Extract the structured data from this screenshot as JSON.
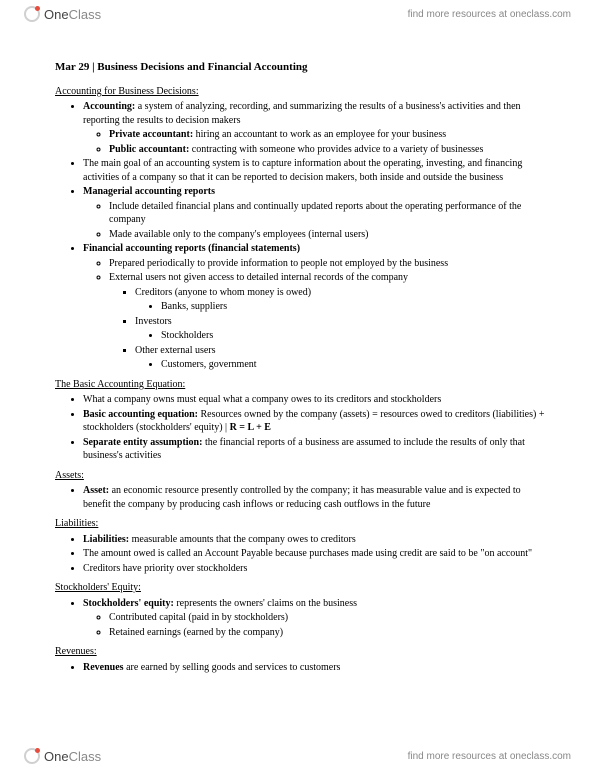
{
  "brand": {
    "one": "One",
    "class": "Class",
    "tagline": "find more resources at oneclass.com"
  },
  "title": "Mar 29 | Business Decisions and Financial Accounting",
  "sec1": {
    "head": "Accounting for Business Decisions:",
    "b1a": "Accounting:",
    "b1b": " a system of analyzing, recording, and summarizing the results of a business's activities and then reporting the results to decision makers",
    "b1s1a": "Private accountant:",
    "b1s1b": " hiring an accountant to work as an employee for your business",
    "b1s2a": "Public accountant:",
    "b1s2b": " contracting with someone who provides advice to a variety of businesses",
    "b2": "The main goal of an accounting system is to capture information about the operating, investing, and financing activities of a company so that it can be reported to decision makers, both inside and outside the business",
    "b3": "Managerial accounting reports",
    "b3s1": "Include detailed financial plans and continually updated reports about the operating performance of the company",
    "b3s2": "Made available only to the company's employees (internal users)",
    "b4": "Financial accounting reports (financial statements)",
    "b4s1": "Prepared periodically to provide information to people not employed by the business",
    "b4s2": "External users not given access to detailed internal records of the company",
    "b4s2a": "Creditors (anyone to whom money is owed)",
    "b4s2a1": "Banks, suppliers",
    "b4s2b": "Investors",
    "b4s2b1": "Stockholders",
    "b4s2c": "Other external users",
    "b4s2c1": "Customers, government"
  },
  "sec2": {
    "head": "The Basic Accounting Equation:",
    "b1": "What a company owns must equal what a company owes to its creditors and stockholders",
    "b2a": "Basic accounting equation:",
    "b2b": " Resources owned by the company (assets) = resources owed to creditors (liabilities) + stockholders (stockholders' equity) | ",
    "b2c": "R = L + E",
    "b3a": "Separate entity assumption:",
    "b3b": " the financial reports of a business are assumed to include the results of only that business's activities"
  },
  "sec3": {
    "head": "Assets:",
    "b1a": "Asset:",
    "b1b": " an economic resource presently controlled by the company; it has measurable value and is expected to benefit the company by producing cash inflows or reducing cash outflows in the future"
  },
  "sec4": {
    "head": "Liabilities:",
    "b1a": "Liabilities:",
    "b1b": " measurable amounts that the company owes to creditors",
    "b2": "The amount owed is called an Account Payable because purchases made using credit are said to be \"on account\"",
    "b3": "Creditors have priority over stockholders"
  },
  "sec5": {
    "head": "Stockholders' Equity:",
    "b1a": "Stockholders' equity:",
    "b1b": " represents the owners' claims on the business",
    "b1s1": "Contributed capital (paid in by stockholders)",
    "b1s2": "Retained earnings (earned by the company)"
  },
  "sec6": {
    "head": "Revenues:",
    "b1a": "Revenues",
    "b1b": " are earned by selling goods and services to customers"
  }
}
